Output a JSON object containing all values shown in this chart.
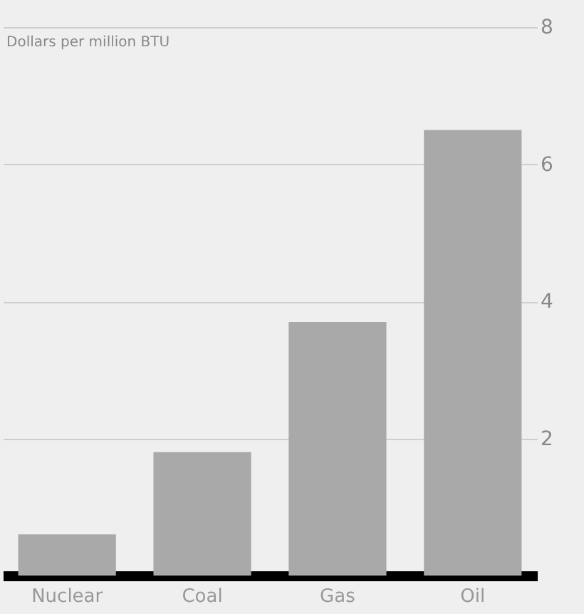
{
  "chart_data": {
    "type": "bar",
    "ylabel": "Dollars per million BTU",
    "categories": [
      "Nuclear",
      "Coal",
      "Gas",
      "Oil"
    ],
    "values": [
      0.6,
      1.8,
      3.7,
      6.5
    ],
    "color": "#a9a9a9",
    "ylim": [
      0,
      8
    ],
    "yticks": [
      2,
      4,
      6,
      8
    ],
    "grid": "y"
  }
}
